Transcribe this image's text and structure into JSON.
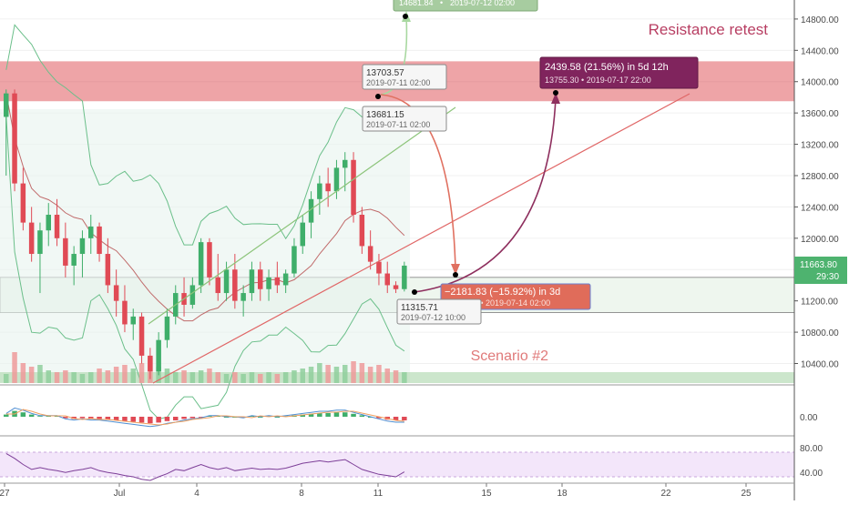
{
  "chart_data": {
    "type": "candlestick",
    "title": "",
    "price_axis": {
      "ticks": [
        "14800.00",
        "14400.00",
        "14000.00",
        "13600.00",
        "13200.00",
        "12800.00",
        "12400.00",
        "12000.00",
        "11600.00",
        "11200.00",
        "10800.00",
        "10400.00"
      ],
      "range": [
        10150,
        14950
      ],
      "current_price": "11663.80",
      "countdown": "29:30"
    },
    "macd_axis": {
      "ticks": [
        "0.00"
      ]
    },
    "rsi_axis": {
      "ticks": [
        "80.00",
        "40.00"
      ]
    },
    "date_ticks": [
      "27",
      "Jul",
      "4",
      "8",
      "11",
      "15",
      "18",
      "22",
      "25"
    ],
    "zones": {
      "resistance": {
        "label": "Resistance retest",
        "low": 13750,
        "high": 14260,
        "color": "#e0595f"
      },
      "support": {
        "low": 11050,
        "high": 11500,
        "color": "#cfe7cf"
      }
    },
    "candles": [
      {
        "o": 13550,
        "h": 13900,
        "l": 12800,
        "c": 13850
      },
      {
        "o": 13850,
        "h": 13900,
        "l": 12600,
        "c": 12700
      },
      {
        "o": 12700,
        "h": 12900,
        "l": 12100,
        "c": 12200
      },
      {
        "o": 12200,
        "h": 12400,
        "l": 11700,
        "c": 11800
      },
      {
        "o": 11800,
        "h": 12200,
        "l": 11300,
        "c": 12100
      },
      {
        "o": 12100,
        "h": 12450,
        "l": 11900,
        "c": 12300
      },
      {
        "o": 12300,
        "h": 12500,
        "l": 11900,
        "c": 12000
      },
      {
        "o": 12000,
        "h": 12200,
        "l": 11500,
        "c": 11650
      },
      {
        "o": 11650,
        "h": 11900,
        "l": 11400,
        "c": 11800
      },
      {
        "o": 11800,
        "h": 12100,
        "l": 11500,
        "c": 12000
      },
      {
        "o": 12000,
        "h": 12300,
        "l": 11800,
        "c": 12150
      },
      {
        "o": 12150,
        "h": 12200,
        "l": 11700,
        "c": 11800
      },
      {
        "o": 11800,
        "h": 12000,
        "l": 11300,
        "c": 11400
      },
      {
        "o": 11400,
        "h": 11600,
        "l": 11000,
        "c": 11200
      },
      {
        "o": 11200,
        "h": 11400,
        "l": 10800,
        "c": 10900
      },
      {
        "o": 10900,
        "h": 11100,
        "l": 10700,
        "c": 11000
      },
      {
        "o": 11000,
        "h": 11050,
        "l": 10400,
        "c": 10500
      },
      {
        "o": 10500,
        "h": 10600,
        "l": 10200,
        "c": 10300
      },
      {
        "o": 10300,
        "h": 10800,
        "l": 10250,
        "c": 10700
      },
      {
        "o": 10700,
        "h": 11100,
        "l": 10600,
        "c": 11000
      },
      {
        "o": 11000,
        "h": 11400,
        "l": 10900,
        "c": 11300
      },
      {
        "o": 11300,
        "h": 11500,
        "l": 11000,
        "c": 11150
      },
      {
        "o": 11150,
        "h": 11500,
        "l": 11100,
        "c": 11400
      },
      {
        "o": 11400,
        "h": 12000,
        "l": 11300,
        "c": 11950
      },
      {
        "o": 11950,
        "h": 12000,
        "l": 11400,
        "c": 11500
      },
      {
        "o": 11500,
        "h": 11800,
        "l": 11200,
        "c": 11300
      },
      {
        "o": 11300,
        "h": 11700,
        "l": 11200,
        "c": 11600
      },
      {
        "o": 11600,
        "h": 11800,
        "l": 11100,
        "c": 11200
      },
      {
        "o": 11200,
        "h": 11400,
        "l": 11000,
        "c": 11300
      },
      {
        "o": 11300,
        "h": 11700,
        "l": 11200,
        "c": 11600
      },
      {
        "o": 11600,
        "h": 11700,
        "l": 11200,
        "c": 11350
      },
      {
        "o": 11350,
        "h": 11600,
        "l": 11200,
        "c": 11500
      },
      {
        "o": 11500,
        "h": 11700,
        "l": 11300,
        "c": 11400
      },
      {
        "o": 11400,
        "h": 11600,
        "l": 11300,
        "c": 11550
      },
      {
        "o": 11550,
        "h": 12000,
        "l": 11500,
        "c": 11900
      },
      {
        "o": 11900,
        "h": 12300,
        "l": 11800,
        "c": 12200
      },
      {
        "o": 12200,
        "h": 12600,
        "l": 12000,
        "c": 12500
      },
      {
        "o": 12500,
        "h": 12800,
        "l": 12300,
        "c": 12700
      },
      {
        "o": 12700,
        "h": 12900,
        "l": 12400,
        "c": 12600
      },
      {
        "o": 12600,
        "h": 13000,
        "l": 12500,
        "c": 12900
      },
      {
        "o": 12900,
        "h": 13100,
        "l": 12600,
        "c": 13000
      },
      {
        "o": 13000,
        "h": 13100,
        "l": 12200,
        "c": 12300
      },
      {
        "o": 12300,
        "h": 12400,
        "l": 11800,
        "c": 11900
      },
      {
        "o": 11900,
        "h": 12100,
        "l": 11600,
        "c": 11700
      },
      {
        "o": 11700,
        "h": 11800,
        "l": 11400,
        "c": 11550
      },
      {
        "o": 11550,
        "h": 11700,
        "l": 11300,
        "c": 11400
      },
      {
        "o": 11400,
        "h": 11450,
        "l": 11300,
        "c": 11350
      },
      {
        "o": 11350,
        "h": 11700,
        "l": 11320,
        "c": 11650
      }
    ],
    "volumes": [
      0.25,
      0.85,
      0.55,
      0.45,
      0.5,
      0.35,
      0.3,
      0.35,
      0.3,
      0.25,
      0.3,
      0.4,
      0.35,
      0.45,
      0.5,
      0.4,
      0.55,
      0.7,
      0.45,
      0.4,
      0.3,
      0.35,
      0.3,
      0.35,
      0.4,
      0.3,
      0.25,
      0.3,
      0.25,
      0.3,
      0.25,
      0.3,
      0.25,
      0.3,
      0.35,
      0.4,
      0.45,
      0.55,
      0.5,
      0.45,
      0.5,
      0.6,
      0.55,
      0.45,
      0.5,
      0.4,
      0.35,
      0.3
    ],
    "macd_hist": [
      0.3,
      0.8,
      0.6,
      0.3,
      0.1,
      0.1,
      0.1,
      -0.2,
      -0.3,
      -0.2,
      -0.3,
      -0.3,
      -0.4,
      -0.5,
      -0.6,
      -0.7,
      -0.8,
      -0.9,
      -0.8,
      -0.6,
      -0.5,
      -0.3,
      -0.2,
      -0.1,
      0.1,
      0.1,
      0.0,
      0.0,
      -0.1,
      0.1,
      0.0,
      0.1,
      0.0,
      0.1,
      0.2,
      0.3,
      0.4,
      0.5,
      0.5,
      0.6,
      0.6,
      0.4,
      0.2,
      0.0,
      -0.2,
      -0.4,
      -0.5,
      -0.5
    ],
    "rsi": [
      78,
      70,
      60,
      52,
      55,
      52,
      50,
      47,
      50,
      52,
      55,
      50,
      47,
      45,
      42,
      40,
      36,
      34,
      40,
      45,
      52,
      50,
      55,
      60,
      55,
      52,
      55,
      50,
      52,
      54,
      52,
      53,
      52,
      54,
      58,
      62,
      64,
      66,
      64,
      66,
      68,
      60,
      52,
      48,
      44,
      42,
      40,
      48
    ],
    "annotations": {
      "box1": {
        "value": "13703.57",
        "date": "2019-07-11 02:00"
      },
      "box2": {
        "value": "13681.15",
        "date": "2019-07-11 02:00"
      },
      "box3": {
        "value": "14681.84",
        "date": "2019-07-12 02:00"
      },
      "box4": {
        "line1": "2439.58 (21.56%)   in 5d 12h",
        "line2": "13755.30  •  2019-07-17  22:00"
      },
      "box5": {
        "line1": "−2181.83 (−15.92%)   in 3d",
        "line2": "11521.74  •  2019-07-14  02:00"
      },
      "box6": {
        "value": "11315.71",
        "date": "2019-07-12 10:00"
      },
      "scenario": "Scenario #2"
    }
  }
}
